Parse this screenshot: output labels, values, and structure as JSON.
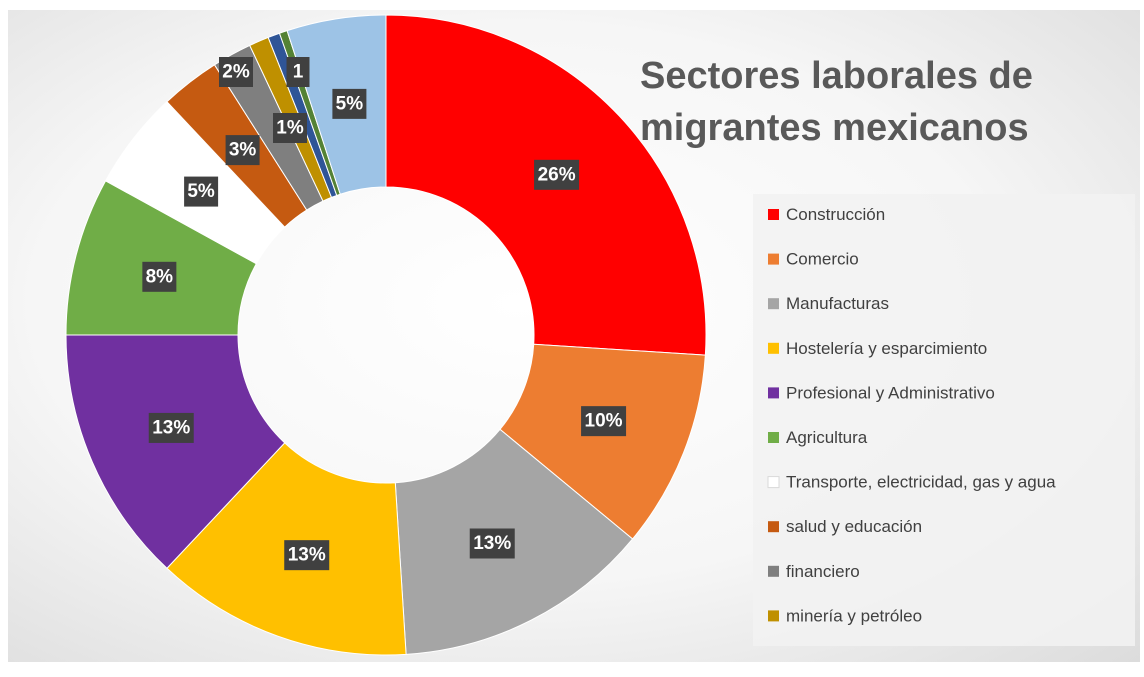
{
  "chart_data": {
    "type": "pie",
    "variant": "donut",
    "title": "Sectores laborales de migrantes mexicanos",
    "title_lines": [
      "Sectores laborales de",
      "migrantes mexicanos"
    ],
    "legend_position": "right",
    "slices": [
      {
        "label": "Construcción",
        "value": 26,
        "display": "26%",
        "color": "#ff0000"
      },
      {
        "label": "Comercio",
        "value": 10,
        "display": "10%",
        "color": "#ed7d31"
      },
      {
        "label": "Manufacturas",
        "value": 13,
        "display": "13%",
        "color": "#a5a5a5"
      },
      {
        "label": "Hostelería y esparcimiento",
        "value": 13,
        "display": "13%",
        "color": "#ffc000"
      },
      {
        "label": "Profesional y Administrativo",
        "value": 13,
        "display": "13%",
        "color": "#7030a0"
      },
      {
        "label": "Agricultura",
        "value": 8,
        "display": "8%",
        "color": "#70ad47"
      },
      {
        "label": "Transporte, electricidad, gas y agua",
        "value": 5,
        "display": "5%",
        "color": "#ffffff"
      },
      {
        "label": "salud y educación",
        "value": 3,
        "display": "3%",
        "color": "#c55a11"
      },
      {
        "label": "financiero",
        "value": 2,
        "display": "2%",
        "color": "#7f7f7f"
      },
      {
        "label": "minería y petróleo",
        "value": 1,
        "display": "1%",
        "color": "#bf9000"
      },
      {
        "label": "",
        "value": 0.6,
        "display": "1",
        "color": "#2f5597"
      },
      {
        "label": "",
        "value": 0.4,
        "display": "",
        "color": "#548235"
      },
      {
        "label": "",
        "value": 5,
        "display": "5%",
        "color": "#9dc3e6"
      }
    ]
  }
}
